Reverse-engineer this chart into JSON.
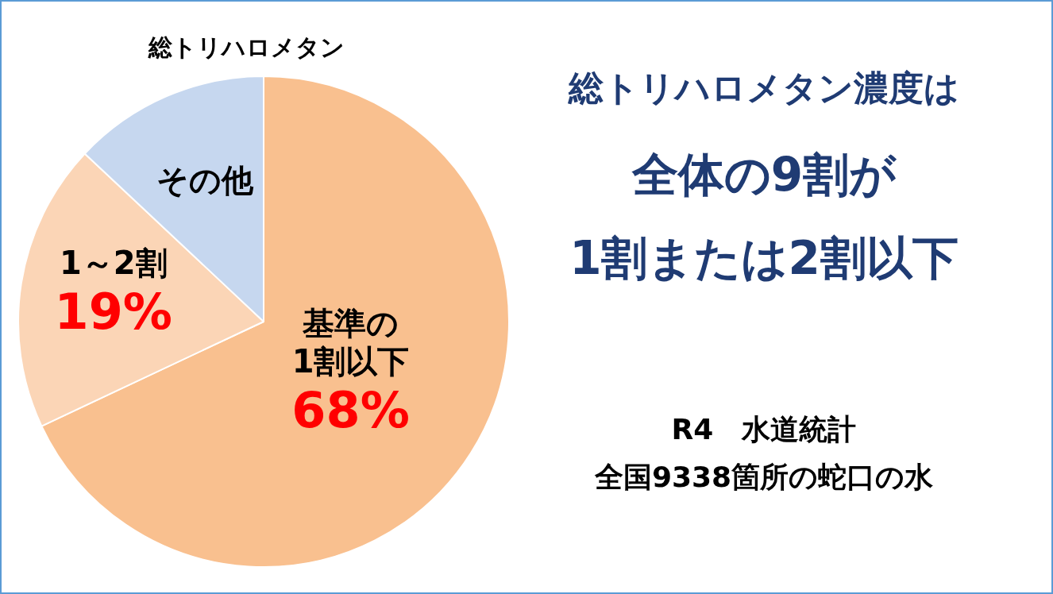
{
  "chart_data": {
    "type": "pie",
    "title": "総トリハロメタン",
    "categories": [
      "基準の\n1割以下",
      "1～2割",
      "その他"
    ],
    "values": [
      68,
      19,
      13
    ],
    "value_labels": [
      "68%",
      "19%",
      null
    ],
    "colors": [
      "#f9c08f",
      "#fbd5b6",
      "#c6d7ef"
    ],
    "legend": false,
    "annotations": [
      "総トリハロメタン濃度は",
      "全体の9割が",
      "1割または2割以下",
      "R4　水道統計",
      "全国9338箇所の蛇口の水"
    ]
  }
}
